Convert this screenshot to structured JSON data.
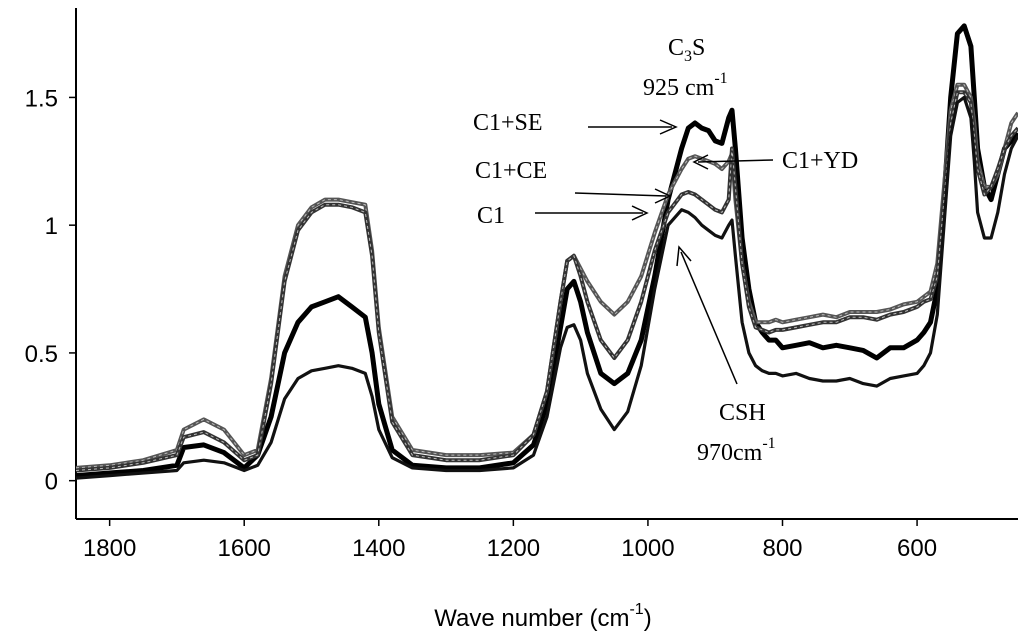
{
  "chart_data": {
    "type": "line",
    "xlabel": "Wave number (cm",
    "xlabel_sup": "-1",
    "xlabel_tail": ")",
    "ylabel": "",
    "xlim": [
      1850,
      450
    ],
    "ylim": [
      -0.15,
      1.85
    ],
    "x_reversed": true,
    "x_ticks": [
      1800,
      1600,
      1400,
      1200,
      1000,
      800,
      600
    ],
    "x_tick_labels": [
      "1800",
      "1600",
      "1400",
      "1200",
      "1000",
      "800",
      "600"
    ],
    "y_ticks": [
      0,
      0.5,
      1,
      1.5
    ],
    "y_tick_labels": [
      "0",
      "0.5",
      "1",
      "1.5"
    ],
    "grid": false,
    "legend": "none (curves identified by arrow annotations)",
    "series": [
      {
        "name": "C1+SE",
        "color": "#000000",
        "style": "thick",
        "x": [
          1850,
          1800,
          1750,
          1700,
          1690,
          1660,
          1630,
          1600,
          1580,
          1560,
          1540,
          1520,
          1500,
          1480,
          1460,
          1440,
          1420,
          1410,
          1400,
          1380,
          1350,
          1300,
          1250,
          1200,
          1170,
          1150,
          1130,
          1120,
          1110,
          1100,
          1090,
          1070,
          1050,
          1030,
          1010,
          990,
          970,
          950,
          940,
          930,
          920,
          910,
          900,
          890,
          880,
          875,
          870,
          860,
          850,
          840,
          830,
          820,
          810,
          800,
          780,
          760,
          740,
          720,
          700,
          680,
          660,
          640,
          620,
          600,
          590,
          580,
          570,
          560,
          550,
          540,
          530,
          520,
          515,
          510,
          500,
          490,
          480,
          470,
          460,
          450
        ],
        "y": [
          0.02,
          0.03,
          0.04,
          0.06,
          0.13,
          0.14,
          0.11,
          0.05,
          0.1,
          0.25,
          0.5,
          0.62,
          0.68,
          0.7,
          0.72,
          0.68,
          0.64,
          0.5,
          0.3,
          0.12,
          0.06,
          0.05,
          0.05,
          0.07,
          0.14,
          0.3,
          0.6,
          0.75,
          0.78,
          0.7,
          0.58,
          0.42,
          0.38,
          0.42,
          0.55,
          0.8,
          1.1,
          1.3,
          1.38,
          1.4,
          1.38,
          1.37,
          1.33,
          1.32,
          1.42,
          1.45,
          1.3,
          0.95,
          0.75,
          0.62,
          0.58,
          0.55,
          0.55,
          0.52,
          0.53,
          0.54,
          0.52,
          0.53,
          0.52,
          0.51,
          0.48,
          0.52,
          0.52,
          0.55,
          0.58,
          0.62,
          0.75,
          1.1,
          1.5,
          1.75,
          1.78,
          1.7,
          1.5,
          1.3,
          1.15,
          1.1,
          1.2,
          1.3,
          1.33,
          1.36
        ]
      },
      {
        "name": "C1+YD",
        "color": "#555555",
        "style": "thin",
        "x": [
          1850,
          1800,
          1750,
          1700,
          1690,
          1660,
          1630,
          1600,
          1580,
          1560,
          1540,
          1520,
          1500,
          1480,
          1460,
          1440,
          1420,
          1410,
          1400,
          1380,
          1350,
          1300,
          1250,
          1200,
          1170,
          1150,
          1130,
          1120,
          1110,
          1100,
          1090,
          1070,
          1050,
          1030,
          1010,
          990,
          970,
          950,
          940,
          930,
          920,
          910,
          900,
          890,
          880,
          875,
          870,
          860,
          850,
          840,
          830,
          820,
          810,
          800,
          780,
          760,
          740,
          720,
          700,
          680,
          660,
          640,
          620,
          600,
          590,
          580,
          570,
          560,
          550,
          540,
          530,
          520,
          515,
          510,
          500,
          490,
          480,
          470,
          460,
          450
        ],
        "y": [
          0.05,
          0.06,
          0.08,
          0.12,
          0.2,
          0.24,
          0.2,
          0.1,
          0.12,
          0.4,
          0.8,
          1.0,
          1.07,
          1.1,
          1.1,
          1.09,
          1.08,
          0.9,
          0.6,
          0.25,
          0.12,
          0.1,
          0.1,
          0.11,
          0.18,
          0.35,
          0.7,
          0.86,
          0.88,
          0.83,
          0.78,
          0.7,
          0.65,
          0.7,
          0.8,
          0.97,
          1.12,
          1.22,
          1.26,
          1.27,
          1.26,
          1.25,
          1.24,
          1.22,
          1.25,
          1.28,
          1.1,
          0.85,
          0.7,
          0.62,
          0.62,
          0.62,
          0.63,
          0.62,
          0.63,
          0.64,
          0.65,
          0.64,
          0.66,
          0.66,
          0.66,
          0.67,
          0.69,
          0.7,
          0.72,
          0.74,
          0.85,
          1.15,
          1.45,
          1.55,
          1.55,
          1.5,
          1.4,
          1.25,
          1.15,
          1.15,
          1.2,
          1.3,
          1.4,
          1.44
        ]
      },
      {
        "name": "C1+CE",
        "color": "#333333",
        "style": "thin",
        "x": [
          1850,
          1800,
          1750,
          1700,
          1690,
          1660,
          1630,
          1600,
          1580,
          1560,
          1540,
          1520,
          1500,
          1480,
          1460,
          1440,
          1420,
          1410,
          1400,
          1380,
          1350,
          1300,
          1250,
          1200,
          1170,
          1150,
          1130,
          1120,
          1110,
          1100,
          1090,
          1070,
          1050,
          1030,
          1010,
          990,
          970,
          950,
          940,
          930,
          920,
          910,
          900,
          890,
          880,
          875,
          870,
          860,
          850,
          840,
          830,
          820,
          810,
          800,
          780,
          760,
          740,
          720,
          700,
          680,
          660,
          640,
          620,
          600,
          590,
          580,
          570,
          560,
          550,
          540,
          530,
          520,
          515,
          510,
          500,
          490,
          480,
          470,
          460,
          450
        ],
        "y": [
          0.04,
          0.05,
          0.07,
          0.1,
          0.17,
          0.19,
          0.15,
          0.08,
          0.1,
          0.38,
          0.78,
          0.98,
          1.05,
          1.08,
          1.08,
          1.07,
          1.05,
          0.88,
          0.58,
          0.23,
          0.1,
          0.08,
          0.08,
          0.1,
          0.18,
          0.35,
          0.7,
          0.86,
          0.88,
          0.8,
          0.7,
          0.55,
          0.48,
          0.55,
          0.7,
          0.9,
          1.05,
          1.12,
          1.13,
          1.12,
          1.1,
          1.08,
          1.06,
          1.05,
          1.1,
          1.3,
          1.15,
          0.85,
          0.68,
          0.6,
          0.59,
          0.58,
          0.59,
          0.59,
          0.6,
          0.61,
          0.62,
          0.62,
          0.64,
          0.64,
          0.63,
          0.65,
          0.66,
          0.68,
          0.7,
          0.71,
          0.8,
          1.1,
          1.4,
          1.52,
          1.52,
          1.48,
          1.35,
          1.22,
          1.12,
          1.15,
          1.22,
          1.3,
          1.35,
          1.38
        ]
      },
      {
        "name": "C1",
        "color": "#111111",
        "style": "medium",
        "x": [
          1850,
          1800,
          1750,
          1700,
          1690,
          1660,
          1630,
          1600,
          1580,
          1560,
          1540,
          1520,
          1500,
          1480,
          1460,
          1440,
          1420,
          1410,
          1400,
          1380,
          1350,
          1300,
          1250,
          1200,
          1170,
          1150,
          1130,
          1120,
          1110,
          1100,
          1090,
          1070,
          1050,
          1030,
          1010,
          990,
          970,
          950,
          940,
          930,
          920,
          910,
          900,
          890,
          880,
          875,
          870,
          860,
          850,
          840,
          830,
          820,
          810,
          800,
          780,
          760,
          740,
          720,
          700,
          680,
          660,
          640,
          620,
          600,
          590,
          580,
          570,
          560,
          550,
          540,
          530,
          520,
          515,
          510,
          500,
          490,
          480,
          470,
          460,
          450
        ],
        "y": [
          0.01,
          0.02,
          0.03,
          0.04,
          0.07,
          0.08,
          0.07,
          0.04,
          0.06,
          0.15,
          0.32,
          0.4,
          0.43,
          0.44,
          0.45,
          0.44,
          0.42,
          0.33,
          0.2,
          0.09,
          0.05,
          0.04,
          0.04,
          0.05,
          0.1,
          0.25,
          0.52,
          0.6,
          0.61,
          0.55,
          0.42,
          0.28,
          0.2,
          0.27,
          0.45,
          0.75,
          1.0,
          1.06,
          1.05,
          1.03,
          1.0,
          0.98,
          0.96,
          0.95,
          1.0,
          1.02,
          0.88,
          0.62,
          0.5,
          0.45,
          0.43,
          0.42,
          0.42,
          0.41,
          0.42,
          0.4,
          0.39,
          0.39,
          0.4,
          0.38,
          0.37,
          0.4,
          0.41,
          0.42,
          0.45,
          0.5,
          0.65,
          1.0,
          1.35,
          1.48,
          1.5,
          1.42,
          1.25,
          1.05,
          0.95,
          0.95,
          1.05,
          1.2,
          1.3,
          1.35
        ]
      }
    ],
    "annotations": [
      {
        "label": "C1+SE",
        "sub": "",
        "label2": ""
      },
      {
        "label": "C1+CE",
        "sub": "",
        "label2": ""
      },
      {
        "label": "C1",
        "sub": "",
        "label2": ""
      },
      {
        "label": "C1+YD",
        "sub": "",
        "label2": ""
      }
    ],
    "peak_labels": {
      "c3s_main": "C",
      "c3s_sub": "3",
      "c3s_tail": "S",
      "c3s_value": "925 cm",
      "c3s_sup": "-1",
      "csh_main": "CSH",
      "csh_value": "970cm",
      "csh_sup": "-1"
    }
  }
}
